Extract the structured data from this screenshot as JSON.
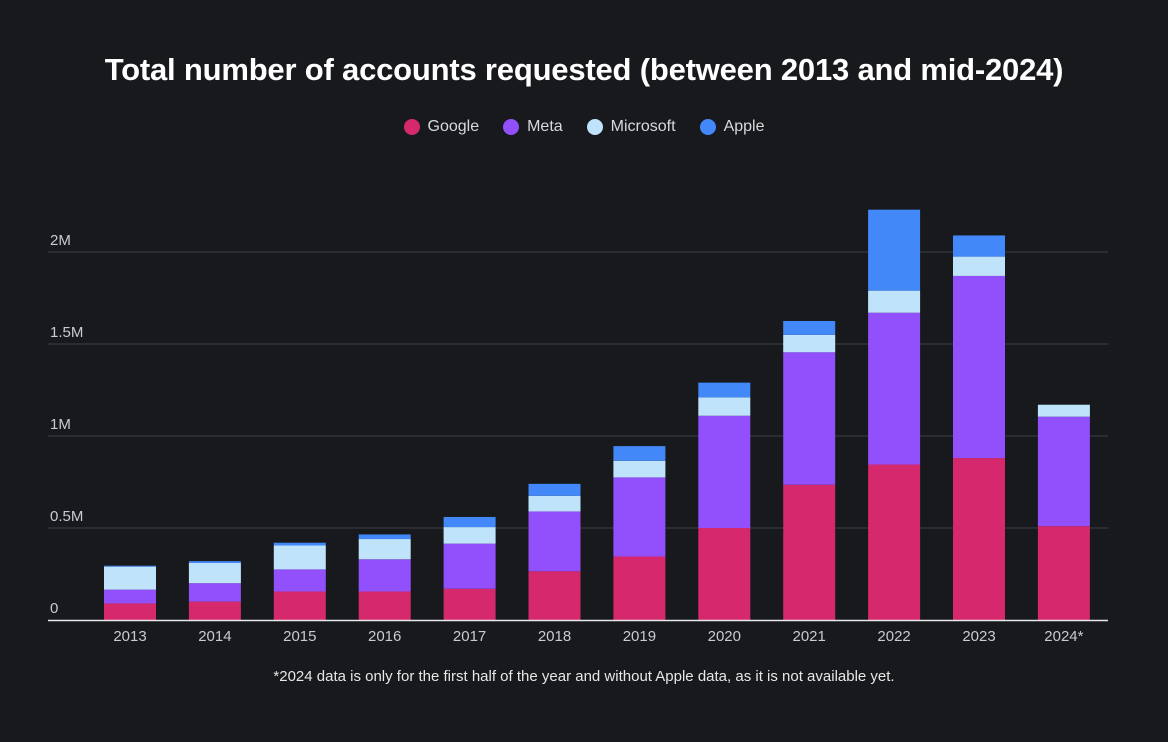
{
  "chart_data": {
    "type": "bar",
    "stacked": true,
    "title": "Total number of accounts requested (between 2013 and mid-2024)",
    "xlabel": "",
    "ylabel": "",
    "categories": [
      "2013",
      "2014",
      "2015",
      "2016",
      "2017",
      "2018",
      "2019",
      "2020",
      "2021",
      "2022",
      "2023",
      "2024*"
    ],
    "series": [
      {
        "name": "Google",
        "color": "#d6286d",
        "values": [
          90000,
          100000,
          155000,
          155000,
          170000,
          265000,
          345000,
          500000,
          735000,
          845000,
          880000,
          510000
        ]
      },
      {
        "name": "Meta",
        "color": "#9150fb",
        "values": [
          75000,
          100000,
          120000,
          175000,
          245000,
          325000,
          430000,
          610000,
          720000,
          825000,
          990000,
          595000
        ]
      },
      {
        "name": "Microsoft",
        "color": "#bfe3fb",
        "values": [
          125000,
          110000,
          130000,
          110000,
          90000,
          85000,
          90000,
          100000,
          95000,
          120000,
          105000,
          65000
        ]
      },
      {
        "name": "Apple",
        "color": "#4388f8",
        "values": [
          5000,
          10000,
          15000,
          25000,
          55000,
          65000,
          80000,
          80000,
          75000,
          440000,
          115000,
          0
        ]
      }
    ],
    "yticks": [
      {
        "value": 0,
        "label": "0"
      },
      {
        "value": 500000,
        "label": "0.5M"
      },
      {
        "value": 1000000,
        "label": "1M"
      },
      {
        "value": 1500000,
        "label": "1.5M"
      },
      {
        "value": 2000000,
        "label": "2M"
      }
    ],
    "ylim": [
      0,
      2000000
    ],
    "grid": true,
    "legend_position": "top-center",
    "footnote": "*2024 data is only for the first half of the year and without Apple data, as it is not available yet."
  }
}
